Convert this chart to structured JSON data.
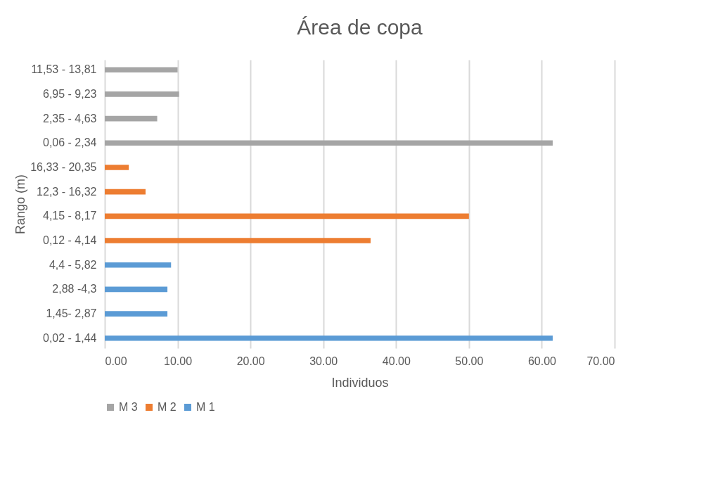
{
  "chart_data": {
    "type": "bar",
    "orientation": "horizontal",
    "title": "Área de copa",
    "xlabel": "Individuos",
    "ylabel": "Rango (m)",
    "categories": [
      "11,53 - 13,81",
      "6,95 -  9,23",
      "2,35 - 4,63",
      "0,06 - 2,34",
      "16,33 - 20,35",
      "12,3 - 16,32",
      "4,15 - 8,17",
      "0,12 - 4,14",
      "4,4 - 5,82",
      "2,88 -4,3",
      "1,45- 2,87",
      "0,02 - 1,44"
    ],
    "series": [
      {
        "name": "M 3",
        "color": "#a5a5a5",
        "values": [
          10,
          10.2,
          7.2,
          61.5,
          null,
          null,
          null,
          null,
          null,
          null,
          null,
          null
        ]
      },
      {
        "name": "M 2",
        "color": "#ed7d31",
        "values": [
          null,
          null,
          null,
          null,
          3.3,
          5.6,
          50,
          36.5,
          null,
          null,
          null,
          null
        ]
      },
      {
        "name": "M 1",
        "color": "#5b9bd5",
        "values": [
          null,
          null,
          null,
          null,
          null,
          null,
          null,
          null,
          9.1,
          8.6,
          8.6,
          61.5
        ]
      }
    ],
    "xlim": [
      0,
      70
    ],
    "xticks": [
      {
        "value": 0,
        "label": "0.00"
      },
      {
        "value": 10,
        "label": "10.00"
      },
      {
        "value": 20,
        "label": "20.00"
      },
      {
        "value": 30,
        "label": "30.00"
      },
      {
        "value": 40,
        "label": "40.00"
      },
      {
        "value": 50,
        "label": "50.00"
      },
      {
        "value": 60,
        "label": "60.00"
      },
      {
        "value": 70,
        "label": "70.00"
      }
    ],
    "grid": "x",
    "legend": "bottom"
  }
}
